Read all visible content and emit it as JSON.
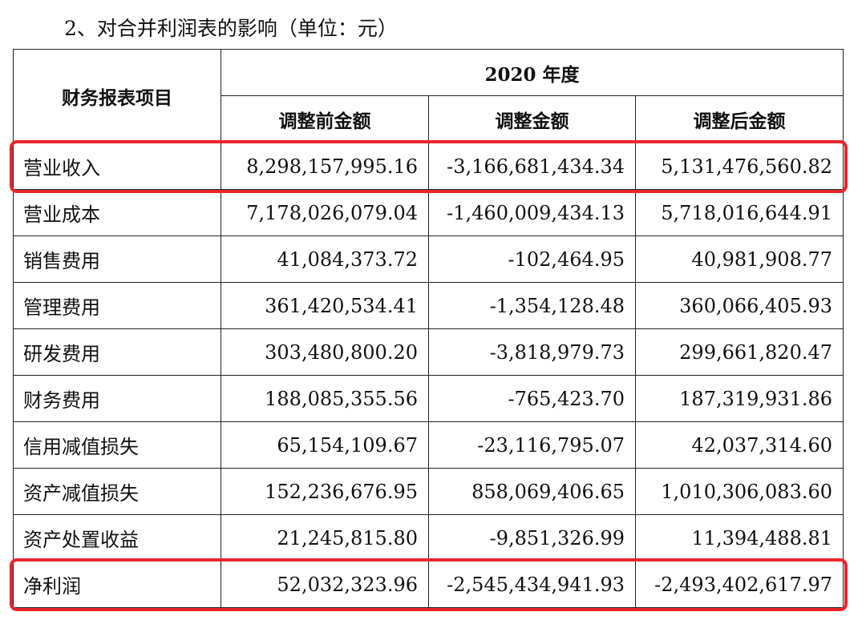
{
  "heading": "2、对合并利润表的影响（单位：元）",
  "table": {
    "item_header": "财务报表项目",
    "year_header": "2020 年度",
    "columns": [
      "调整前金额",
      "调整金额",
      "调整后金额"
    ],
    "rows": [
      {
        "item": "营业收入",
        "before": "8,298,157,995.16",
        "adjustment": "-3,166,681,434.34",
        "after": "5,131,476,560.82",
        "highlighted": true
      },
      {
        "item": "营业成本",
        "before": "7,178,026,079.04",
        "adjustment": "-1,460,009,434.13",
        "after": "5,718,016,644.91",
        "highlighted": false
      },
      {
        "item": "销售费用",
        "before": "41,084,373.72",
        "adjustment": "-102,464.95",
        "after": "40,981,908.77",
        "highlighted": false
      },
      {
        "item": "管理费用",
        "before": "361,420,534.41",
        "adjustment": "-1,354,128.48",
        "after": "360,066,405.93",
        "highlighted": false
      },
      {
        "item": "研发费用",
        "before": "303,480,800.20",
        "adjustment": "-3,818,979.73",
        "after": "299,661,820.47",
        "highlighted": false
      },
      {
        "item": "财务费用",
        "before": "188,085,355.56",
        "adjustment": "-765,423.70",
        "after": "187,319,931.86",
        "highlighted": false
      },
      {
        "item": "信用减值损失",
        "before": "65,154,109.67",
        "adjustment": "-23,116,795.07",
        "after": "42,037,314.60",
        "highlighted": false
      },
      {
        "item": "资产减值损失",
        "before": "152,236,676.95",
        "adjustment": "858,069,406.65",
        "after": "1,010,306,083.60",
        "highlighted": false
      },
      {
        "item": "资产处置收益",
        "before": "21,245,815.80",
        "adjustment": "-9,851,326.99",
        "after": "11,394,488.81",
        "highlighted": false
      },
      {
        "item": "净利润",
        "before": "52,032,323.96",
        "adjustment": "-2,545,434,941.93",
        "after": "-2,493,402,617.97",
        "highlighted": true
      }
    ]
  },
  "colors": {
    "highlight": "#e8262a",
    "border": "#222222",
    "text": "#111111"
  }
}
